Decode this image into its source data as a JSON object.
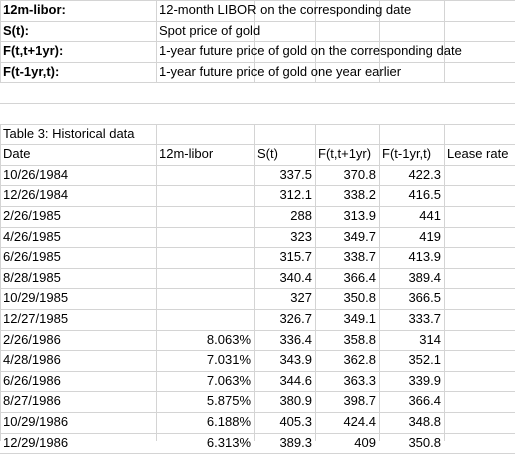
{
  "definitions": [
    {
      "term": "12m-libor:",
      "desc": "12-month LIBOR on the corresponding date"
    },
    {
      "term": "S(t):",
      "desc": "Spot price of gold"
    },
    {
      "term": "F(t,t+1yr):",
      "desc": "1-year future price of gold on the corresponding date"
    },
    {
      "term": "F(t-1yr,t):",
      "desc": "1-year future price of gold one year earlier"
    }
  ],
  "table": {
    "caption": "Table 3: Historical data",
    "headers": [
      "Date",
      "12m-libor",
      "S(t)",
      "F(t,t+1yr)",
      "F(t-1yr,t)",
      "Lease rate"
    ],
    "rows": [
      [
        "10/26/1984",
        "",
        "337.5",
        "370.8",
        "422.3",
        ""
      ],
      [
        "12/26/1984",
        "",
        "312.1",
        "338.2",
        "416.5",
        ""
      ],
      [
        "2/26/1985",
        "",
        "288",
        "313.9",
        "441",
        ""
      ],
      [
        "4/26/1985",
        "",
        "323",
        "349.7",
        "419",
        ""
      ],
      [
        "6/26/1985",
        "",
        "315.7",
        "338.7",
        "413.9",
        ""
      ],
      [
        "8/28/1985",
        "",
        "340.4",
        "366.4",
        "389.4",
        ""
      ],
      [
        "10/29/1985",
        "",
        "327",
        "350.8",
        "366.5",
        ""
      ],
      [
        "12/27/1985",
        "",
        "326.7",
        "349.1",
        "333.7",
        ""
      ],
      [
        "2/26/1986",
        "8.063%",
        "336.4",
        "358.8",
        "314",
        ""
      ],
      [
        "4/28/1986",
        "7.031%",
        "343.9",
        "362.8",
        "352.1",
        ""
      ],
      [
        "6/26/1986",
        "7.063%",
        "344.6",
        "363.3",
        "339.9",
        ""
      ],
      [
        "8/27/1986",
        "5.875%",
        "380.9",
        "398.7",
        "366.4",
        ""
      ],
      [
        "10/29/1986",
        "6.188%",
        "405.3",
        "424.4",
        "348.8",
        ""
      ],
      [
        "12/29/1986",
        "6.313%",
        "389.3",
        "409",
        "350.8",
        ""
      ]
    ]
  }
}
